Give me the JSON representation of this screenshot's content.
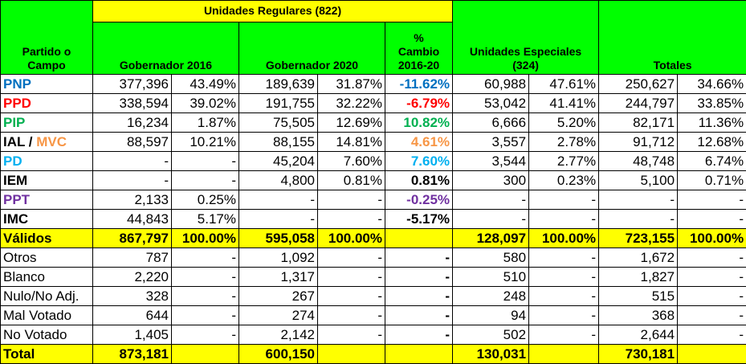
{
  "header": {
    "party": [
      "Partido o",
      "Campo"
    ],
    "regular": "Unidades Regulares (822)",
    "gov2016": "Gobernador 2016",
    "gov2020": "Gobernador 2020",
    "change": [
      "%",
      "Cambio",
      "2016-20"
    ],
    "special": [
      "Unidades Especiales",
      "(324)"
    ],
    "totals": "Totales"
  },
  "rows": [
    {
      "label": "PNP",
      "cells": [
        "377,396",
        "43.49%",
        "189,639",
        "31.87%",
        "-11.62%",
        "60,988",
        "47.61%",
        "250,627",
        "34.66%"
      ]
    },
    {
      "label": "PPD",
      "cells": [
        "338,594",
        "39.02%",
        "191,755",
        "32.22%",
        "-6.79%",
        "53,042",
        "41.41%",
        "244,797",
        "33.85%"
      ]
    },
    {
      "label": "PIP",
      "cells": [
        "16,234",
        "1.87%",
        "75,505",
        "12.69%",
        "10.82%",
        "6,666",
        "5.20%",
        "82,171",
        "11.36%"
      ]
    },
    {
      "label": [
        "IAL",
        " / ",
        "MVC"
      ],
      "cells": [
        "88,597",
        "10.21%",
        "88,155",
        "14.81%",
        "4.61%",
        "3,557",
        "2.78%",
        "91,712",
        "12.68%"
      ]
    },
    {
      "label": "PD",
      "cells": [
        "-",
        "-",
        "45,204",
        "7.60%",
        "7.60%",
        "3,544",
        "2.77%",
        "48,748",
        "6.74%"
      ]
    },
    {
      "label": "IEM",
      "cells": [
        "-",
        "-",
        "4,800",
        "0.81%",
        "0.81%",
        "300",
        "0.23%",
        "5,100",
        "0.71%"
      ]
    },
    {
      "label": "PPT",
      "cells": [
        "2,133",
        "0.25%",
        "-",
        "-",
        "-0.25%",
        "-",
        "-",
        "-",
        "-"
      ]
    },
    {
      "label": "IMC",
      "cells": [
        "44,843",
        "5.17%",
        "-",
        "-",
        "-5.17%",
        "-",
        "-",
        "-",
        "-"
      ]
    },
    {
      "label": "Válidos",
      "cells": [
        "867,797",
        "100.00%",
        "595,058",
        "100.00%",
        null,
        "128,097",
        "100.00%",
        "723,155",
        "100.00%"
      ]
    },
    {
      "label": "Otros",
      "cells": [
        "787",
        "-",
        "1,092",
        "-",
        "-",
        "580",
        "-",
        "1,672",
        "-"
      ]
    },
    {
      "label": "Blanco",
      "cells": [
        "2,220",
        "-",
        "1,317",
        "-",
        "-",
        "510",
        "-",
        "1,827",
        "-"
      ]
    },
    {
      "label": "Nulo/No Adj.",
      "cells": [
        "328",
        "-",
        "267",
        "-",
        "-",
        "248",
        "-",
        "515",
        "-"
      ]
    },
    {
      "label": "Mal Votado",
      "cells": [
        "644",
        "-",
        "274",
        "-",
        "-",
        "94",
        "-",
        "368",
        "-"
      ]
    },
    {
      "label": "No Votado",
      "cells": [
        "1,405",
        "-",
        "2,142",
        "-",
        "-",
        "502",
        "-",
        "2,644",
        "-"
      ]
    },
    {
      "label": "Total",
      "cells": [
        "873,181",
        null,
        "600,150",
        null,
        null,
        "130,031",
        null,
        "730,181",
        null
      ]
    }
  ]
}
